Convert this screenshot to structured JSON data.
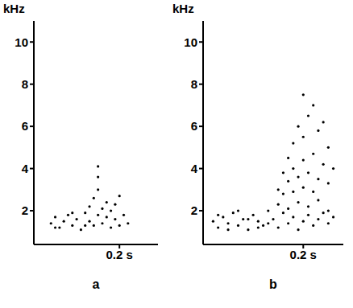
{
  "chart_data": [
    {
      "type": "scatter",
      "title": "a",
      "ylabel": "kHz",
      "x": [
        0.04,
        0.05,
        0.06,
        0.07,
        0.08,
        0.09,
        0.1,
        0.11,
        0.12,
        0.13,
        0.13,
        0.14,
        0.14,
        0.15,
        0.15,
        0.16,
        0.16,
        0.17,
        0.17,
        0.18,
        0.18,
        0.19,
        0.2,
        0.2,
        0.21,
        0.22,
        0.15,
        0.15,
        0.05,
        0.09,
        0.12,
        0.19
      ],
      "values": [
        1.4,
        1.7,
        1.2,
        1.5,
        1.8,
        1.3,
        1.6,
        1.1,
        1.9,
        1.5,
        2.2,
        1.3,
        2.6,
        1.8,
        3.0,
        2.1,
        1.4,
        2.4,
        1.7,
        1.2,
        2.0,
        1.6,
        1.3,
        2.7,
        1.8,
        1.4,
        4.1,
        3.6,
        1.2,
        1.9,
        1.3,
        2.3
      ],
      "color": "#000000",
      "marker": "circle",
      "xlim": [
        0,
        0.29
      ],
      "xticks": [
        {
          "value": 0.2,
          "label": "0.2 s"
        }
      ],
      "ylim": [
        0.4,
        11
      ],
      "yticks": [
        2,
        4,
        6,
        8,
        10
      ]
    },
    {
      "type": "scatter",
      "title": "b",
      "ylabel": "kHz",
      "x": [
        0.02,
        0.03,
        0.04,
        0.05,
        0.06,
        0.07,
        0.08,
        0.09,
        0.1,
        0.11,
        0.12,
        0.13,
        0.14,
        0.15,
        0.16,
        0.17,
        0.18,
        0.19,
        0.2,
        0.21,
        0.22,
        0.23,
        0.24,
        0.25,
        0.26,
        0.03,
        0.05,
        0.07,
        0.09,
        0.11,
        0.13,
        0.15,
        0.17,
        0.19,
        0.21,
        0.23,
        0.25,
        0.15,
        0.16,
        0.16,
        0.17,
        0.17,
        0.18,
        0.18,
        0.18,
        0.19,
        0.19,
        0.2,
        0.2,
        0.2,
        0.2,
        0.21,
        0.21,
        0.22,
        0.22,
        0.22,
        0.23,
        0.23,
        0.24,
        0.24,
        0.25,
        0.25,
        0.26
      ],
      "values": [
        1.5,
        1.2,
        1.7,
        1.4,
        1.9,
        1.3,
        1.6,
        1.1,
        1.8,
        1.5,
        1.3,
        2.0,
        1.6,
        1.2,
        1.9,
        1.4,
        1.7,
        1.1,
        1.5,
        1.8,
        1.3,
        1.6,
        1.9,
        1.4,
        1.7,
        1.8,
        1.1,
        2.0,
        1.6,
        1.2,
        1.4,
        2.3,
        2.1,
        2.4,
        2.2,
        2.5,
        2.0,
        3.0,
        2.8,
        3.8,
        3.4,
        4.5,
        2.9,
        4.0,
        5.2,
        3.6,
        6.0,
        3.1,
        4.4,
        5.5,
        7.5,
        3.8,
        6.5,
        2.9,
        4.7,
        7.0,
        3.5,
        5.8,
        4.2,
        6.2,
        3.3,
        5.0,
        4.0
      ],
      "color": "#000000",
      "marker": "circle",
      "xlim": [
        0,
        0.28
      ],
      "xticks": [
        {
          "value": 0.2,
          "label": "0.2 s"
        }
      ],
      "ylim": [
        0.4,
        11
      ],
      "yticks": [
        2,
        4,
        6,
        8,
        10
      ]
    }
  ]
}
